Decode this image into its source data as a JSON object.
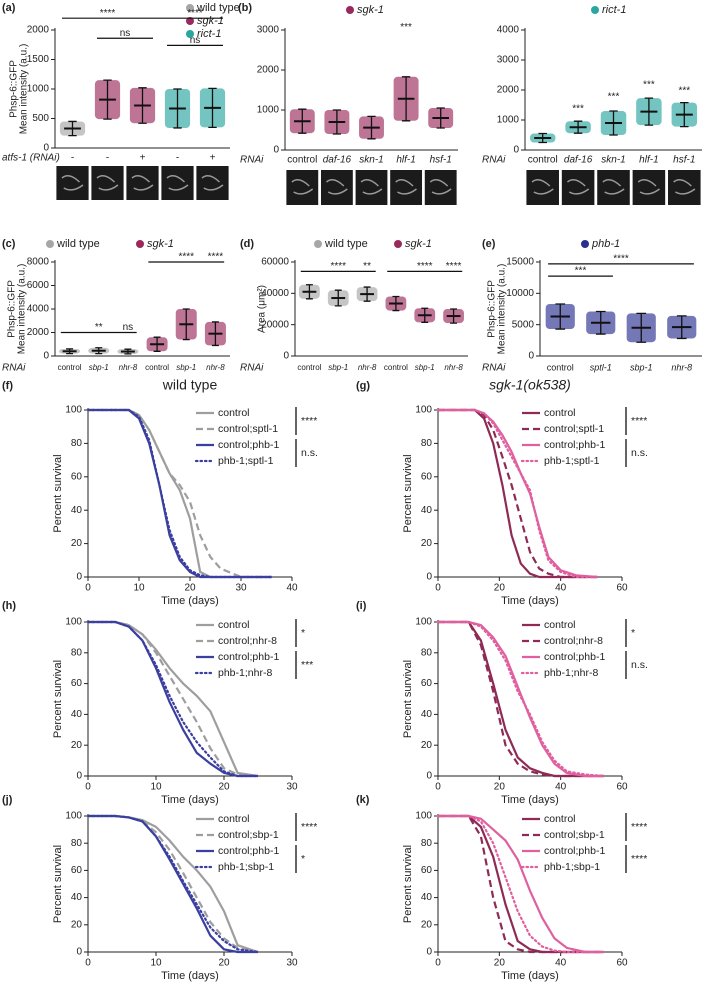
{
  "chart_data": [
    {
      "type": "dot",
      "panel": "(a)",
      "ylabel": [
        "Phsp-6::GFP",
        "Mean intensity (a.u.)"
      ],
      "xrow_label": "atfs-1 (RNAi)",
      "categories": [
        "-",
        "-",
        "+",
        "-",
        "+"
      ],
      "ylim": [
        0,
        2000
      ],
      "yticks": [
        0,
        500,
        1000,
        1500,
        2000
      ],
      "series": [
        {
          "name": "wild type",
          "color": "#a6a6a6",
          "values": [
            330,
            null,
            null,
            null,
            null
          ],
          "errors": [
            120,
            null,
            null,
            null,
            null
          ]
        },
        {
          "name": "sgk-1",
          "color": "#9a2a5c",
          "values": [
            null,
            820,
            720,
            null,
            null
          ],
          "errors": [
            null,
            330,
            300,
            null,
            null
          ]
        },
        {
          "name": "rict-1",
          "color": "#2aa6a0",
          "values": [
            null,
            null,
            null,
            670,
            680
          ],
          "errors": [
            null,
            null,
            null,
            330,
            330
          ]
        }
      ],
      "annotations": [
        "****",
        "****",
        "ns",
        "ns"
      ]
    },
    {
      "type": "dot",
      "panel": "(b)",
      "xrow_label": "RNAi",
      "categories": [
        "control",
        "daf-16",
        "skn-1",
        "hlf-1",
        "hsf-1"
      ],
      "ylim": [
        0,
        3000
      ],
      "yticks": [
        0,
        1000,
        2000,
        3000
      ],
      "series": [
        {
          "name": "sgk-1",
          "color": "#9a2a5c",
          "values": [
            720,
            700,
            560,
            1280,
            800
          ],
          "errors": [
            300,
            300,
            280,
            550,
            250
          ]
        }
      ],
      "annotations": [
        "***"
      ]
    },
    {
      "type": "dot",
      "xrow_label": "RNAi",
      "categories": [
        "control",
        "daf-16",
        "skn-1",
        "hlf-1",
        "hsf-1"
      ],
      "ylim": [
        0,
        4000
      ],
      "yticks": [
        0,
        1000,
        2000,
        3000,
        4000
      ],
      "series": [
        {
          "name": "rict-1",
          "color": "#2aa6a0",
          "values": [
            400,
            760,
            900,
            1280,
            1180
          ],
          "errors": [
            150,
            200,
            400,
            450,
            400
          ]
        }
      ],
      "annotations": [
        "***",
        "***",
        "***",
        "***"
      ]
    },
    {
      "type": "dot",
      "panel": "(c)",
      "ylabel": [
        "Phsp-6::GFP",
        "Mean intensity (a.u.)"
      ],
      "xrow_label": "RNAi",
      "categories": [
        "control",
        "sbp-1",
        "nhr-8",
        "control",
        "sbp-1",
        "nhr-8"
      ],
      "ylim": [
        0,
        8000
      ],
      "yticks": [
        0,
        2000,
        4000,
        6000,
        8000
      ],
      "series": [
        {
          "name": "wild type",
          "color": "#a6a6a6",
          "values": [
            400,
            450,
            380,
            null,
            null,
            null
          ],
          "errors": [
            200,
            250,
            200,
            null,
            null,
            null
          ]
        },
        {
          "name": "sgk-1",
          "color": "#9a2a5c",
          "values": [
            null,
            null,
            null,
            1000,
            2700,
            1900
          ],
          "errors": [
            null,
            null,
            null,
            600,
            1300,
            1000
          ]
        }
      ],
      "annotations": [
        "**",
        "ns",
        "****",
        "****"
      ]
    },
    {
      "type": "dot",
      "panel": "(d)",
      "ylabel": [
        "Area (μm²)"
      ],
      "xrow_label": "RNAi",
      "categories": [
        "control",
        "sbp-1",
        "nhr-8",
        "control",
        "sbp-1",
        "nhr-8"
      ],
      "ylim": [
        0,
        60000
      ],
      "yticks": [
        0,
        20000,
        40000,
        60000
      ],
      "series": [
        {
          "name": "wild type",
          "color": "#a6a6a6",
          "values": [
            41000,
            37000,
            39500,
            null,
            null,
            null
          ],
          "errors": [
            4500,
            5000,
            4500,
            null,
            null,
            null
          ]
        },
        {
          "name": "sgk-1",
          "color": "#9a2a5c",
          "values": [
            null,
            null,
            null,
            33500,
            26000,
            25500
          ],
          "errors": [
            null,
            null,
            null,
            4500,
            4500,
            4500
          ]
        }
      ],
      "annotations": [
        "****",
        "**",
        "****",
        "****"
      ]
    },
    {
      "type": "dot",
      "panel": "(e)",
      "ylabel": [
        "Phsp-6::GFP",
        "Mean intensity (a.u.)"
      ],
      "xrow_label": "RNAi",
      "categories": [
        "control",
        "sptl-1",
        "sbp-1",
        "nhr-8"
      ],
      "ylim": [
        0,
        15000
      ],
      "yticks": [
        0,
        5000,
        10000,
        15000
      ],
      "series": [
        {
          "name": "phb-1",
          "color": "#2b2f8f",
          "values": [
            6300,
            5300,
            4500,
            4600
          ],
          "errors": [
            2000,
            1800,
            2300,
            1800
          ]
        }
      ],
      "annotations": [
        "***",
        "****"
      ]
    },
    {
      "type": "line",
      "panel": "(f)",
      "title": "wild type",
      "xlabel": "Time (days)",
      "ylabel": "Percent survival",
      "xlim": [
        0,
        40
      ],
      "xticks": [
        0,
        10,
        20,
        30,
        40
      ],
      "ylim": [
        0,
        100
      ],
      "yticks": [
        0,
        20,
        40,
        60,
        80,
        100
      ],
      "x": [
        0,
        8,
        10,
        12,
        14,
        16,
        18,
        20,
        22,
        24,
        26,
        30,
        36
      ],
      "series": [
        {
          "name": "control",
          "color": "#9e9e9e",
          "dash": "solid",
          "values": [
            100,
            100,
            97,
            88,
            75,
            62,
            52,
            35,
            3,
            0,
            0,
            0,
            0
          ]
        },
        {
          "name": "control;sptl-1",
          "color": "#9e9e9e",
          "dash": "dashed",
          "values": [
            100,
            100,
            97,
            88,
            75,
            62,
            55,
            45,
            25,
            12,
            5,
            0,
            0
          ]
        },
        {
          "name": "control;phb-1",
          "color": "#3a3fa0",
          "dash": "solid",
          "values": [
            100,
            100,
            95,
            80,
            55,
            25,
            10,
            3,
            0,
            0,
            0,
            0,
            0
          ]
        },
        {
          "name": "phb-1;sptl-1",
          "color": "#3a3fa0",
          "dash": "dotted",
          "values": [
            100,
            100,
            96,
            82,
            55,
            28,
            12,
            4,
            1,
            0,
            0,
            0,
            0
          ]
        }
      ],
      "annotations": [
        "****",
        "n.s."
      ]
    },
    {
      "type": "line",
      "panel": "(g)",
      "title": "sgk-1(ok538)",
      "xlabel": "Time (days)",
      "ylabel": "Percent survival",
      "xlim": [
        0,
        60
      ],
      "xticks": [
        0,
        20,
        40,
        60
      ],
      "ylim": [
        0,
        100
      ],
      "yticks": [
        0,
        20,
        40,
        60,
        80,
        100
      ],
      "x": [
        0,
        12,
        15,
        18,
        21,
        24,
        27,
        30,
        33,
        36,
        40,
        45,
        52
      ],
      "series": [
        {
          "name": "control",
          "color": "#8e2a55",
          "dash": "solid",
          "values": [
            100,
            100,
            95,
            80,
            55,
            25,
            8,
            2,
            0,
            0,
            0,
            0,
            0
          ]
        },
        {
          "name": "control;sptl-1",
          "color": "#8e2a55",
          "dash": "dashed",
          "values": [
            100,
            100,
            97,
            88,
            72,
            55,
            35,
            15,
            5,
            2,
            0,
            0,
            0
          ]
        },
        {
          "name": "control;phb-1",
          "color": "#e0609f",
          "dash": "solid",
          "values": [
            100,
            100,
            98,
            93,
            85,
            75,
            62,
            50,
            30,
            12,
            4,
            1,
            0
          ]
        },
        {
          "name": "phb-1;sptl-1",
          "color": "#e0609f",
          "dash": "dotted",
          "values": [
            100,
            100,
            98,
            92,
            82,
            72,
            62,
            52,
            28,
            10,
            3,
            0,
            0
          ]
        }
      ],
      "annotations": [
        "****",
        "n.s."
      ]
    },
    {
      "type": "line",
      "panel": "(h)",
      "xlabel": "Time (days)",
      "ylabel": "Percent survival",
      "xlim": [
        0,
        30
      ],
      "xticks": [
        0,
        10,
        20,
        30
      ],
      "ylim": [
        0,
        100
      ],
      "yticks": [
        0,
        20,
        40,
        60,
        80,
        100
      ],
      "x": [
        0,
        4,
        6,
        8,
        10,
        12,
        14,
        16,
        18,
        20,
        22,
        25
      ],
      "series": [
        {
          "name": "control",
          "color": "#9e9e9e",
          "dash": "solid",
          "values": [
            100,
            100,
            98,
            92,
            82,
            70,
            60,
            52,
            42,
            22,
            2,
            0
          ]
        },
        {
          "name": "control;nhr-8",
          "color": "#9e9e9e",
          "dash": "dashed",
          "values": [
            100,
            100,
            98,
            92,
            80,
            65,
            50,
            35,
            18,
            5,
            1,
            0
          ]
        },
        {
          "name": "control;phb-1",
          "color": "#3a3fa0",
          "dash": "solid",
          "values": [
            100,
            100,
            97,
            88,
            70,
            48,
            30,
            15,
            8,
            2,
            0,
            0
          ]
        },
        {
          "name": "phb-1;nhr-8",
          "color": "#3a3fa0",
          "dash": "dotted",
          "values": [
            100,
            100,
            97,
            88,
            72,
            52,
            35,
            22,
            12,
            3,
            0,
            0
          ]
        }
      ],
      "annotations": [
        "*",
        "***"
      ]
    },
    {
      "type": "line",
      "panel": "(i)",
      "xlabel": "Time (days)",
      "ylabel": "Percent survival",
      "xlim": [
        0,
        60
      ],
      "xticks": [
        0,
        20,
        40,
        60
      ],
      "ylim": [
        0,
        100
      ],
      "yticks": [
        0,
        20,
        40,
        60,
        80,
        100
      ],
      "x": [
        0,
        10,
        14,
        18,
        22,
        26,
        30,
        34,
        38,
        42,
        48,
        54
      ],
      "series": [
        {
          "name": "control",
          "color": "#8e2a55",
          "dash": "solid",
          "values": [
            100,
            100,
            88,
            60,
            30,
            12,
            5,
            2,
            0,
            0,
            0,
            0
          ]
        },
        {
          "name": "control;nhr-8",
          "color": "#8e2a55",
          "dash": "dashed",
          "values": [
            100,
            100,
            85,
            55,
            20,
            8,
            3,
            1,
            0,
            0,
            0,
            0
          ]
        },
        {
          "name": "control;phb-1",
          "color": "#e0609f",
          "dash": "solid",
          "values": [
            100,
            100,
            98,
            90,
            78,
            58,
            38,
            20,
            8,
            2,
            0,
            0
          ]
        },
        {
          "name": "phb-1;nhr-8",
          "color": "#e0609f",
          "dash": "dotted",
          "values": [
            100,
            100,
            97,
            88,
            75,
            55,
            40,
            22,
            10,
            3,
            1,
            0
          ]
        }
      ],
      "annotations": [
        "*",
        "n.s."
      ]
    },
    {
      "type": "line",
      "panel": "(j)",
      "xlabel": "Time (days)",
      "ylabel": "Percent survival",
      "xlim": [
        0,
        30
      ],
      "xticks": [
        0,
        10,
        20,
        30
      ],
      "ylim": [
        0,
        100
      ],
      "yticks": [
        0,
        20,
        40,
        60,
        80,
        100
      ],
      "x": [
        0,
        4,
        6,
        8,
        10,
        12,
        14,
        16,
        18,
        20,
        22,
        25
      ],
      "series": [
        {
          "name": "control",
          "color": "#9e9e9e",
          "dash": "solid",
          "values": [
            100,
            100,
            99,
            97,
            92,
            82,
            70,
            60,
            48,
            30,
            5,
            0
          ]
        },
        {
          "name": "control;sbp-1",
          "color": "#9e9e9e",
          "dash": "dashed",
          "values": [
            100,
            100,
            99,
            96,
            88,
            75,
            58,
            40,
            22,
            10,
            3,
            0
          ]
        },
        {
          "name": "control;phb-1",
          "color": "#3a3fa0",
          "dash": "solid",
          "values": [
            100,
            100,
            99,
            96,
            85,
            68,
            50,
            32,
            12,
            2,
            0,
            0
          ]
        },
        {
          "name": "phb-1;sbp-1",
          "color": "#3a3fa0",
          "dash": "dotted",
          "values": [
            100,
            100,
            99,
            96,
            85,
            70,
            52,
            35,
            18,
            8,
            2,
            0
          ]
        }
      ],
      "annotations": [
        "****",
        "*"
      ]
    },
    {
      "type": "line",
      "panel": "(k)",
      "xlabel": "Time (days)",
      "ylabel": "Percent survival",
      "xlim": [
        0,
        60
      ],
      "xticks": [
        0,
        20,
        40,
        60
      ],
      "ylim": [
        0,
        100
      ],
      "yticks": [
        0,
        20,
        40,
        60,
        80,
        100
      ],
      "x": [
        0,
        10,
        14,
        18,
        22,
        26,
        30,
        34,
        38,
        42,
        48,
        54
      ],
      "series": [
        {
          "name": "control",
          "color": "#8e2a55",
          "dash": "solid",
          "values": [
            100,
            100,
            92,
            70,
            35,
            8,
            2,
            0,
            0,
            0,
            0,
            0
          ]
        },
        {
          "name": "control;sbp-1",
          "color": "#8e2a55",
          "dash": "dashed",
          "values": [
            100,
            100,
            85,
            40,
            8,
            2,
            0,
            0,
            0,
            0,
            0,
            0
          ]
        },
        {
          "name": "control;phb-1",
          "color": "#e0609f",
          "dash": "solid",
          "values": [
            100,
            100,
            98,
            90,
            82,
            68,
            45,
            25,
            10,
            3,
            0,
            0
          ]
        },
        {
          "name": "phb-1;sbp-1",
          "color": "#e0609f",
          "dash": "dotted",
          "values": [
            100,
            100,
            96,
            80,
            55,
            30,
            12,
            4,
            1,
            0,
            0,
            0
          ]
        }
      ],
      "annotations": [
        "****",
        "****"
      ]
    }
  ]
}
